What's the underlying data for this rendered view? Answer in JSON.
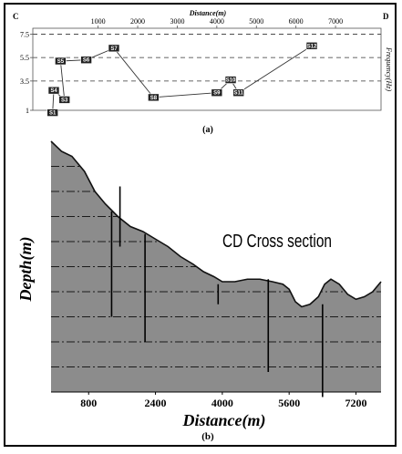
{
  "chart_data": [
    {
      "type": "line",
      "panel_label": "(a)",
      "corner_left": "C",
      "corner_right": "D",
      "xlabel": "Distance(m)",
      "ylabel": "Frequency(Hz)",
      "x_ticks": [
        1000,
        2000,
        3000,
        4000,
        5000,
        6000,
        7000
      ],
      "x_tick_labels": [
        "1000",
        "2000",
        "3000",
        "4000",
        "5000",
        "6000",
        "7000"
      ],
      "y_ticks": [
        1,
        3.5,
        5.5,
        7.5
      ],
      "y_tick_labels": [
        "1",
        "3.5",
        "5.5",
        "7.5"
      ],
      "xlim": [
        -650,
        8150
      ],
      "ylim": [
        1,
        8
      ],
      "reference_lines_y": [
        3.5,
        5.5,
        7.5
      ],
      "points": [
        {
          "label": "S1",
          "x": -150,
          "y": 0.8
        },
        {
          "label": "S4",
          "x": -120,
          "y": 2.7
        },
        {
          "label": "S3",
          "x": 150,
          "y": 1.9
        },
        {
          "label": "S5",
          "x": 50,
          "y": 5.2
        },
        {
          "label": "S6",
          "x": 700,
          "y": 5.3
        },
        {
          "label": "S7",
          "x": 1400,
          "y": 6.3
        },
        {
          "label": "S8",
          "x": 2400,
          "y": 2.1
        },
        {
          "label": "S9",
          "x": 4000,
          "y": 2.5
        },
        {
          "label": "S10",
          "x": 4350,
          "y": 3.6
        },
        {
          "label": "S11",
          "x": 4550,
          "y": 2.5
        },
        {
          "label": "S12",
          "x": 6400,
          "y": 6.5
        }
      ],
      "path_order": [
        "S1",
        "S4",
        "S3",
        "S5",
        "S6",
        "S7",
        "S8",
        "S9",
        "S10",
        "S11",
        "S12"
      ]
    },
    {
      "type": "area",
      "panel_label": "(b)",
      "annotation": "CD Cross section",
      "xlabel": "Distance(m)",
      "ylabel": "Depth(m)",
      "x_ticks": [
        800,
        2400,
        4000,
        5600,
        7200
      ],
      "x_tick_labels": [
        "800",
        "2400",
        "4000",
        "5600",
        "7200"
      ],
      "xlim": [
        -100,
        7800
      ],
      "ylim": [
        0,
        100
      ],
      "surface_profile": {
        "x": [
          -100,
          150,
          400,
          700,
          950,
          1200,
          1500,
          1800,
          2100,
          2400,
          2700,
          3000,
          3300,
          3550,
          3800,
          4000,
          4300,
          4600,
          4900,
          5200,
          5450,
          5600,
          5750,
          5900,
          6100,
          6300,
          6450,
          6600,
          6800,
          7000,
          7200,
          7400,
          7600,
          7800
        ],
        "y": [
          100,
          96,
          94,
          88,
          80,
          75,
          70,
          66,
          64,
          61,
          58,
          54,
          51,
          48,
          46,
          44,
          44,
          45,
          45,
          44,
          43,
          41,
          36,
          34,
          35,
          38,
          43,
          45,
          43,
          39,
          37,
          38,
          40,
          44
        ]
      },
      "dash_lines_y": [
        90,
        80,
        70,
        60,
        50,
        40,
        30,
        20,
        10
      ],
      "vertical_lines": [
        {
          "x": 1350,
          "y0": 30,
          "y1": 72
        },
        {
          "x": 1550,
          "y0": 58,
          "y1": 82
        },
        {
          "x": 2150,
          "y0": 20,
          "y1": 63
        },
        {
          "x": 3900,
          "y0": 35,
          "y1": 43
        },
        {
          "x": 5100,
          "y0": 8,
          "y1": 45
        },
        {
          "x": 6400,
          "y0": -2,
          "y1": 35
        }
      ],
      "fill_color": "#8c8c8c"
    }
  ]
}
